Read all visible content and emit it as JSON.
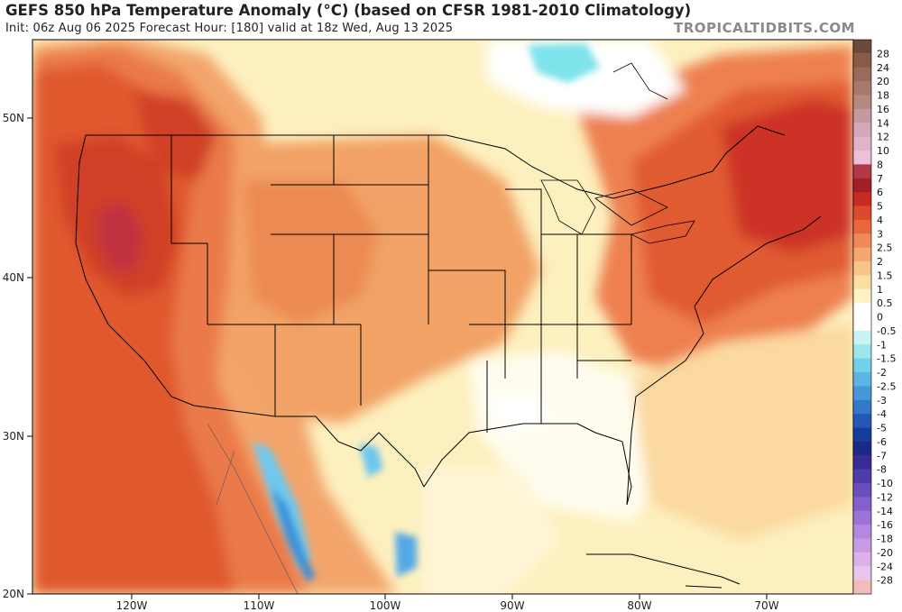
{
  "header": {
    "title": "GEFS 850 hPa Temperature Anomaly (°C) (based on CFSR 1981-2010 Climatology)",
    "subtitle": "Init: 06z Aug 06 2025   Forecast Hour: [180]   valid at 18z Wed, Aug 13 2025",
    "credit": "TROPICALTIDBITS.COM"
  },
  "axes": {
    "lat_labels": [
      "50N",
      "40N",
      "30N",
      "20N"
    ],
    "lon_labels": [
      "120W",
      "110W",
      "100W",
      "90W",
      "80W",
      "70W"
    ]
  },
  "colorbar": {
    "levels": [
      "28",
      "24",
      "20",
      "18",
      "16",
      "14",
      "12",
      "10",
      "8",
      "7",
      "6",
      "5",
      "4",
      "3",
      "2.5",
      "2",
      "1.5",
      "1",
      "0.5",
      "0",
      "-0.5",
      "-1",
      "-1.5",
      "-2",
      "-2.5",
      "-3",
      "-4",
      "-5",
      "-6",
      "-7",
      "-8",
      "-10",
      "-12",
      "-14",
      "-16",
      "-18",
      "-20",
      "-24",
      "-28"
    ],
    "colors": [
      "#8a5a48",
      "#9a6a5a",
      "#a87a6c",
      "#b48a80",
      "#c29aa0",
      "#d4a8b8",
      "#e0b4c8",
      "#ecc0d8",
      "#b03848",
      "#a02028",
      "#c82a22",
      "#dc4a2c",
      "#e8683c",
      "#f0885a",
      "#f4a870",
      "#f8c488",
      "#fadea4",
      "#fdf2c4",
      "#ffffff",
      "#ffffff",
      "#c8f4f6",
      "#9ce6ec",
      "#74d0e8",
      "#5cb4e4",
      "#4898d8",
      "#3478c8",
      "#2458b4",
      "#183c9c",
      "#1c2a84",
      "#382c94",
      "#503ca8",
      "#6a4ebc",
      "#8460cc",
      "#9c74d8",
      "#b488e0",
      "#c89ce4",
      "#dab2e8",
      "#e8c6ec",
      "#f2bcbc"
    ],
    "top_color": "#6a4a3a"
  }
}
